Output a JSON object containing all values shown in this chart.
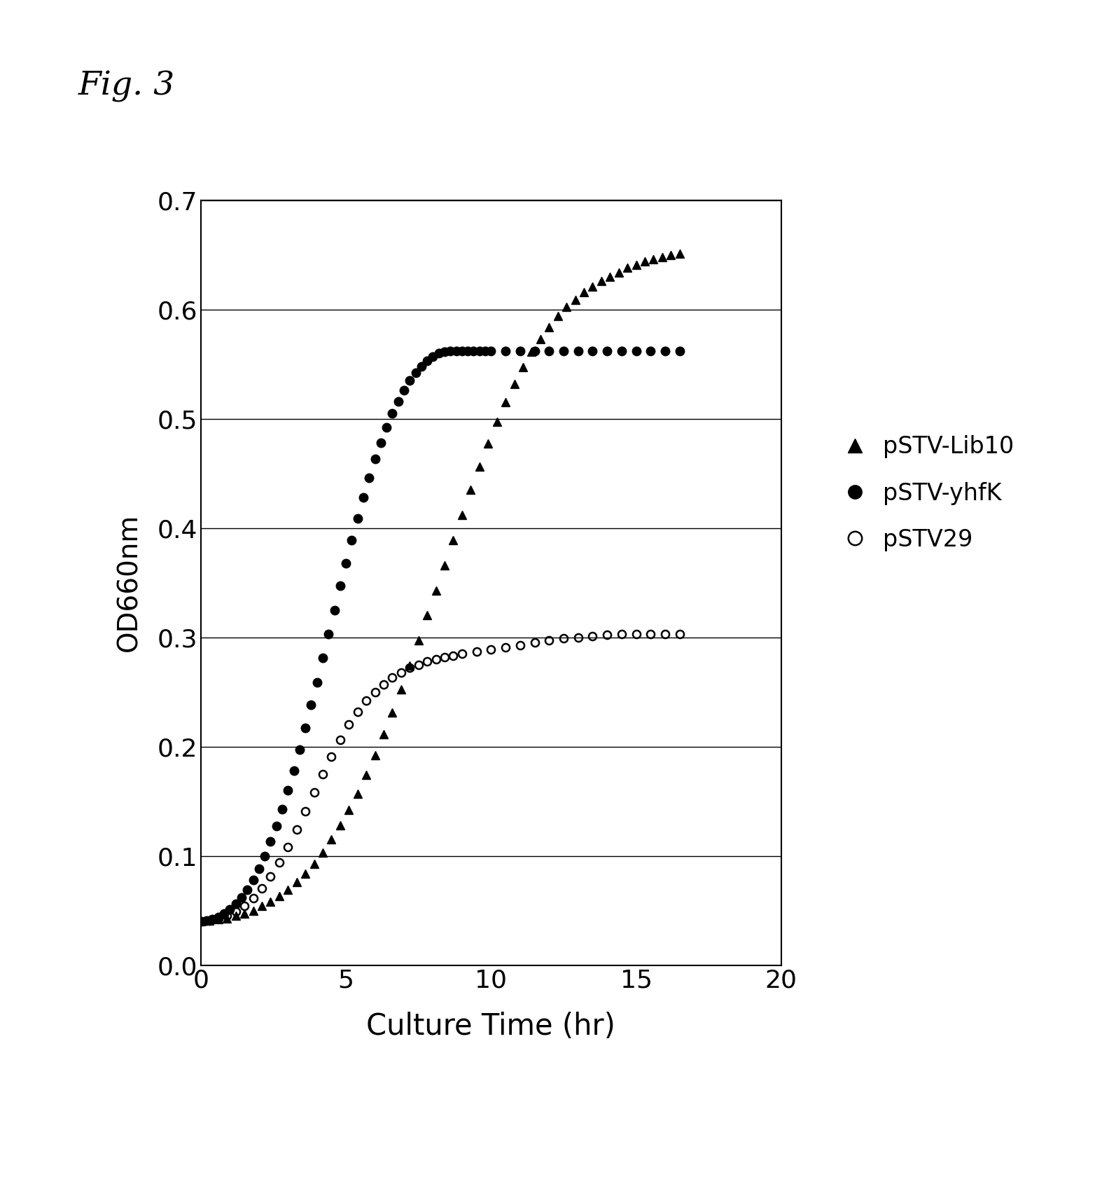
{
  "title": "Fig. 3",
  "xlabel": "Culture Time (hr)",
  "ylabel": "OD660nm",
  "xlim": [
    0,
    20
  ],
  "ylim": [
    0,
    0.7
  ],
  "xticks": [
    0,
    5,
    10,
    15,
    20
  ],
  "yticks": [
    0,
    0.1,
    0.2,
    0.3,
    0.4,
    0.5,
    0.6,
    0.7
  ],
  "background_color": "#ffffff",
  "legend_labels": [
    "pSTV-Lib10",
    "pSTV-yhfK",
    "pSTV29"
  ],
  "series": {
    "pSTV_Lib10": {
      "color": "#000000",
      "marker": "^",
      "markersize": 8,
      "fillstyle": "full",
      "x": [
        0.0,
        0.3,
        0.6,
        0.9,
        1.2,
        1.5,
        1.8,
        2.1,
        2.4,
        2.7,
        3.0,
        3.3,
        3.6,
        3.9,
        4.2,
        4.5,
        4.8,
        5.1,
        5.4,
        5.7,
        6.0,
        6.3,
        6.6,
        6.9,
        7.2,
        7.5,
        7.8,
        8.1,
        8.4,
        8.7,
        9.0,
        9.3,
        9.6,
        9.9,
        10.2,
        10.5,
        10.8,
        11.1,
        11.4,
        11.7,
        12.0,
        12.3,
        12.6,
        12.9,
        13.2,
        13.5,
        13.8,
        14.1,
        14.4,
        14.7,
        15.0,
        15.3,
        15.6,
        15.9,
        16.2,
        16.5
      ],
      "y": [
        0.04,
        0.041,
        0.042,
        0.043,
        0.045,
        0.047,
        0.05,
        0.054,
        0.058,
        0.063,
        0.069,
        0.076,
        0.084,
        0.093,
        0.103,
        0.115,
        0.128,
        0.142,
        0.157,
        0.174,
        0.192,
        0.211,
        0.231,
        0.252,
        0.274,
        0.297,
        0.32,
        0.343,
        0.366,
        0.389,
        0.412,
        0.435,
        0.456,
        0.477,
        0.497,
        0.515,
        0.532,
        0.547,
        0.561,
        0.573,
        0.584,
        0.594,
        0.602,
        0.609,
        0.616,
        0.621,
        0.626,
        0.63,
        0.634,
        0.638,
        0.641,
        0.644,
        0.646,
        0.648,
        0.65,
        0.651
      ]
    },
    "pSTV_yhfK": {
      "color": "#000000",
      "marker": "o",
      "markersize": 9,
      "fillstyle": "full",
      "x": [
        0.0,
        0.2,
        0.4,
        0.6,
        0.8,
        1.0,
        1.2,
        1.4,
        1.6,
        1.8,
        2.0,
        2.2,
        2.4,
        2.6,
        2.8,
        3.0,
        3.2,
        3.4,
        3.6,
        3.8,
        4.0,
        4.2,
        4.4,
        4.6,
        4.8,
        5.0,
        5.2,
        5.4,
        5.6,
        5.8,
        6.0,
        6.2,
        6.4,
        6.6,
        6.8,
        7.0,
        7.2,
        7.4,
        7.6,
        7.8,
        8.0,
        8.2,
        8.4,
        8.6,
        8.8,
        9.0,
        9.2,
        9.4,
        9.6,
        9.8,
        10.0,
        10.5,
        11.0,
        11.5,
        12.0,
        12.5,
        13.0,
        13.5,
        14.0,
        14.5,
        15.0,
        15.5,
        16.0,
        16.5
      ],
      "y": [
        0.04,
        0.041,
        0.042,
        0.044,
        0.047,
        0.051,
        0.056,
        0.062,
        0.069,
        0.078,
        0.088,
        0.1,
        0.113,
        0.127,
        0.143,
        0.16,
        0.178,
        0.197,
        0.217,
        0.238,
        0.259,
        0.281,
        0.303,
        0.325,
        0.347,
        0.368,
        0.389,
        0.409,
        0.428,
        0.446,
        0.463,
        0.478,
        0.492,
        0.505,
        0.516,
        0.526,
        0.535,
        0.542,
        0.548,
        0.553,
        0.557,
        0.56,
        0.561,
        0.562,
        0.562,
        0.562,
        0.562,
        0.562,
        0.562,
        0.562,
        0.562,
        0.562,
        0.562,
        0.562,
        0.562,
        0.562,
        0.562,
        0.562,
        0.562,
        0.562,
        0.562,
        0.562,
        0.562,
        0.562
      ]
    },
    "pSTV29": {
      "color": "#000000",
      "marker": "o",
      "markersize": 8,
      "fillstyle": "none",
      "x": [
        0.0,
        0.3,
        0.6,
        0.9,
        1.2,
        1.5,
        1.8,
        2.1,
        2.4,
        2.7,
        3.0,
        3.3,
        3.6,
        3.9,
        4.2,
        4.5,
        4.8,
        5.1,
        5.4,
        5.7,
        6.0,
        6.3,
        6.6,
        6.9,
        7.2,
        7.5,
        7.8,
        8.1,
        8.4,
        8.7,
        9.0,
        9.5,
        10.0,
        10.5,
        11.0,
        11.5,
        12.0,
        12.5,
        13.0,
        13.5,
        14.0,
        14.5,
        15.0,
        15.5,
        16.0,
        16.5
      ],
      "y": [
        0.04,
        0.041,
        0.043,
        0.045,
        0.049,
        0.054,
        0.061,
        0.07,
        0.081,
        0.094,
        0.108,
        0.124,
        0.141,
        0.158,
        0.175,
        0.191,
        0.206,
        0.22,
        0.232,
        0.242,
        0.25,
        0.257,
        0.263,
        0.268,
        0.272,
        0.275,
        0.278,
        0.28,
        0.282,
        0.283,
        0.285,
        0.287,
        0.289,
        0.291,
        0.293,
        0.295,
        0.297,
        0.299,
        0.3,
        0.301,
        0.302,
        0.303,
        0.303,
        0.303,
        0.303,
        0.303
      ]
    }
  }
}
